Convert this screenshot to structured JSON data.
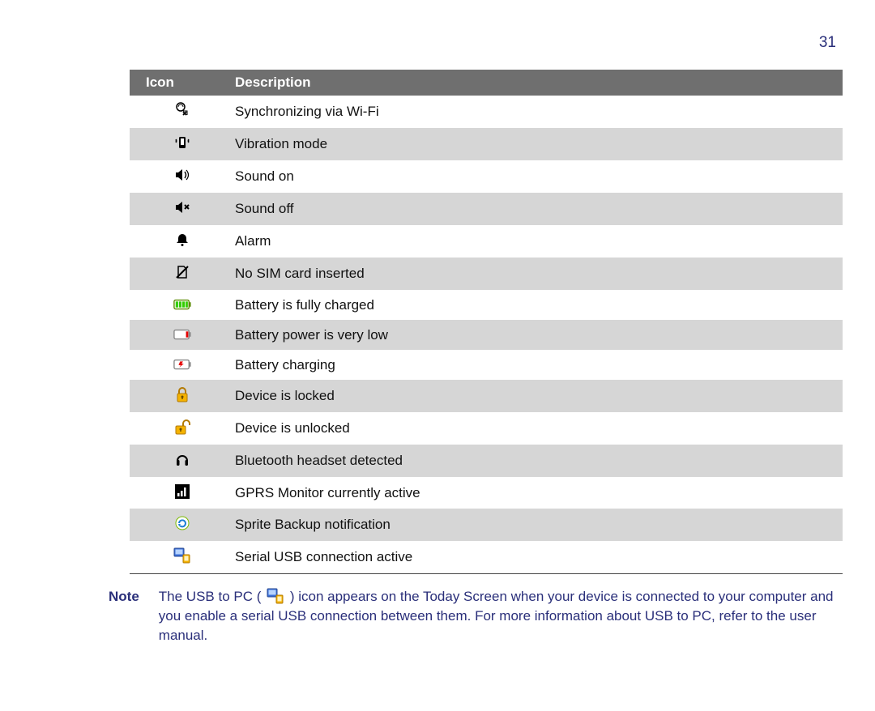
{
  "page_number": "31",
  "header": {
    "icon_col": "Icon",
    "desc_col": "Description"
  },
  "colors": {
    "header_bg": "#6f6f6f",
    "header_text": "#ffffff",
    "alt_row_bg": "#d6d6d6",
    "note_text": "#2a2f7a",
    "body_text": "#111111",
    "page_bg": "#ffffff"
  },
  "rows": [
    {
      "icon": "sync-wifi-icon",
      "desc": "Synchronizing via Wi-Fi",
      "alt": false
    },
    {
      "icon": "vibrate-icon",
      "desc": "Vibration mode",
      "alt": true
    },
    {
      "icon": "sound-on-icon",
      "desc": "Sound on",
      "alt": false
    },
    {
      "icon": "sound-off-icon",
      "desc": "Sound off",
      "alt": true
    },
    {
      "icon": "alarm-icon",
      "desc": "Alarm",
      "alt": false
    },
    {
      "icon": "no-sim-icon",
      "desc": "No SIM card inserted",
      "alt": true
    },
    {
      "icon": "battery-full-icon",
      "desc": "Battery is fully charged",
      "alt": false
    },
    {
      "icon": "battery-low-icon",
      "desc": "Battery power is very low",
      "alt": true
    },
    {
      "icon": "battery-charging-icon",
      "desc": "Battery charging",
      "alt": false
    },
    {
      "icon": "lock-icon",
      "desc": "Device is locked",
      "alt": true
    },
    {
      "icon": "unlock-icon",
      "desc": "Device is unlocked",
      "alt": false
    },
    {
      "icon": "bt-headset-icon",
      "desc": "Bluetooth headset detected",
      "alt": true
    },
    {
      "icon": "gprs-monitor-icon",
      "desc": "GPRS Monitor currently active",
      "alt": false
    },
    {
      "icon": "sprite-backup-icon",
      "desc": "Sprite Backup notification",
      "alt": true
    },
    {
      "icon": "serial-usb-icon",
      "desc": "Serial USB connection active",
      "alt": false
    }
  ],
  "note": {
    "label": "Note",
    "text_before": "The USB to PC ( ",
    "inline_icon": "serial-usb-icon",
    "text_after": " ) icon appears on the Today Screen when your device is connected to your computer and you enable a serial USB connection between them. For more information about USB to PC, refer to the user manual."
  }
}
